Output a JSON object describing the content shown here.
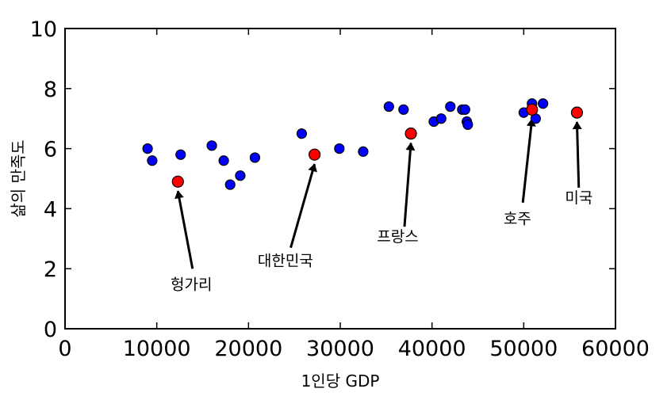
{
  "chart_data": {
    "type": "scatter",
    "title": "",
    "xlabel": "1인당 GDP",
    "ylabel": "삶의 만족도",
    "xlim": [
      0,
      60000
    ],
    "ylim": [
      0,
      10
    ],
    "x_ticks": [
      0,
      10000,
      20000,
      30000,
      40000,
      50000,
      60000
    ],
    "x_tick_labels": [
      "0",
      "10000",
      "20000",
      "30000",
      "40000",
      "50000",
      "60000"
    ],
    "y_ticks": [
      0,
      2,
      4,
      6,
      8,
      10
    ],
    "y_tick_labels": [
      "0",
      "2",
      "4",
      "6",
      "8",
      "10"
    ],
    "grid": false,
    "colors": {
      "points": "#0000ff",
      "highlight": "#ff0000",
      "arrow": "#000000"
    },
    "points": [
      {
        "x": 9000,
        "y": 6.0
      },
      {
        "x": 9500,
        "y": 5.6
      },
      {
        "x": 12600,
        "y": 5.8
      },
      {
        "x": 16000,
        "y": 6.1
      },
      {
        "x": 17300,
        "y": 5.6
      },
      {
        "x": 18000,
        "y": 4.8
      },
      {
        "x": 19100,
        "y": 5.1
      },
      {
        "x": 20700,
        "y": 5.7
      },
      {
        "x": 25800,
        "y": 6.5
      },
      {
        "x": 29900,
        "y": 6.0
      },
      {
        "x": 32500,
        "y": 5.9
      },
      {
        "x": 35300,
        "y": 7.4
      },
      {
        "x": 36900,
        "y": 7.3
      },
      {
        "x": 40200,
        "y": 6.9
      },
      {
        "x": 41000,
        "y": 7.0
      },
      {
        "x": 42000,
        "y": 7.4
      },
      {
        "x": 43300,
        "y": 7.3
      },
      {
        "x": 43600,
        "y": 7.3
      },
      {
        "x": 43800,
        "y": 6.9
      },
      {
        "x": 43900,
        "y": 6.8
      },
      {
        "x": 50000,
        "y": 7.2
      },
      {
        "x": 50900,
        "y": 7.5
      },
      {
        "x": 51300,
        "y": 7.0
      },
      {
        "x": 52100,
        "y": 7.5
      }
    ],
    "highlighted": [
      {
        "label": "헝가리",
        "x": 12300,
        "y": 4.9,
        "text_x": 11500,
        "text_y": 1.3,
        "arrow_tail_x": 13900,
        "arrow_tail_y": 2.0
      },
      {
        "label": "대한민국",
        "x": 27200,
        "y": 5.8,
        "text_x": 21000,
        "text_y": 2.1,
        "arrow_tail_x": 24600,
        "arrow_tail_y": 2.7
      },
      {
        "label": "프랑스",
        "x": 37700,
        "y": 6.5,
        "text_x": 34000,
        "text_y": 2.9,
        "arrow_tail_x": 37000,
        "arrow_tail_y": 3.4
      },
      {
        "label": "호주",
        "x": 50900,
        "y": 7.3,
        "text_x": 47800,
        "text_y": 3.5,
        "arrow_tail_x": 49900,
        "arrow_tail_y": 4.2
      },
      {
        "label": "미국",
        "x": 55800,
        "y": 7.2,
        "text_x": 54500,
        "text_y": 4.2,
        "arrow_tail_x": 56000,
        "arrow_tail_y": 4.7
      }
    ]
  }
}
